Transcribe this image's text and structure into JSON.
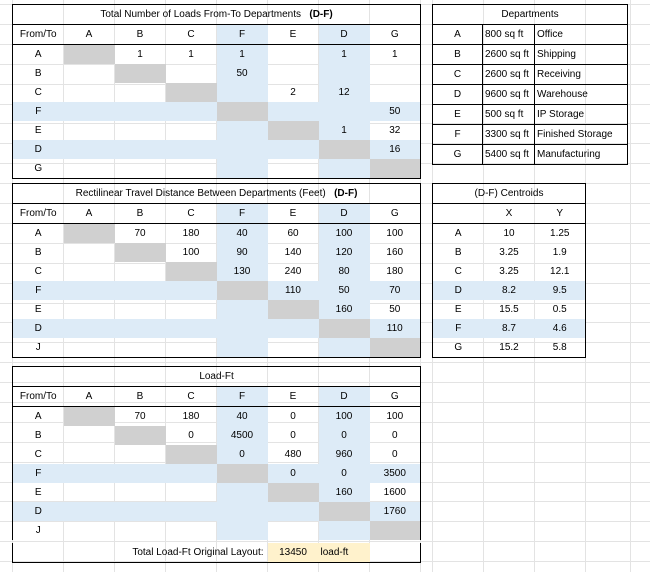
{
  "headers": [
    "From/To",
    "A",
    "B",
    "C",
    "F",
    "E",
    "D",
    "G"
  ],
  "loads": {
    "title": "Total Number of Loads From-To Departments",
    "tag": "(D-F)",
    "rows": [
      [
        "A",
        "",
        "1",
        "1",
        "1",
        "",
        "1",
        "1"
      ],
      [
        "B",
        "",
        "",
        "",
        "50",
        "",
        "",
        ""
      ],
      [
        "C",
        "",
        "",
        "",
        "",
        "2",
        "12",
        ""
      ],
      [
        "F",
        "",
        "",
        "",
        "",
        "",
        "",
        "50"
      ],
      [
        "E",
        "",
        "",
        "",
        "",
        "",
        "1",
        "32"
      ],
      [
        "D",
        "",
        "",
        "",
        "",
        "",
        "",
        "16"
      ],
      [
        "G",
        "",
        "",
        "",
        "",
        "",
        "",
        ""
      ]
    ]
  },
  "distance": {
    "title": "Rectilinear Travel Distance Between Departments (Feet)",
    "tag": "(D-F)",
    "rows": [
      [
        "A",
        "",
        "70",
        "180",
        "40",
        "60",
        "100",
        "100"
      ],
      [
        "B",
        "",
        "",
        "100",
        "90",
        "140",
        "120",
        "160"
      ],
      [
        "C",
        "",
        "",
        "",
        "130",
        "240",
        "80",
        "180"
      ],
      [
        "F",
        "",
        "",
        "",
        "",
        "110",
        "50",
        "70"
      ],
      [
        "E",
        "",
        "",
        "",
        "",
        "",
        "160",
        "50"
      ],
      [
        "D",
        "",
        "",
        "",
        "",
        "",
        "",
        "110"
      ],
      [
        "J",
        "",
        "",
        "",
        "",
        "",
        "",
        ""
      ]
    ]
  },
  "loadft": {
    "title": "Load-Ft",
    "rows": [
      [
        "A",
        "",
        "70",
        "180",
        "40",
        "0",
        "100",
        "100"
      ],
      [
        "B",
        "",
        "",
        "0",
        "4500",
        "0",
        "0",
        "0"
      ],
      [
        "C",
        "",
        "",
        "",
        "0",
        "480",
        "960",
        "0"
      ],
      [
        "F",
        "",
        "",
        "",
        "",
        "0",
        "0",
        "3500"
      ],
      [
        "E",
        "",
        "",
        "",
        "",
        "",
        "160",
        "1600"
      ],
      [
        "D",
        "",
        "",
        "",
        "",
        "",
        "",
        "1760"
      ],
      [
        "J",
        "",
        "",
        "",
        "",
        "",
        "",
        ""
      ]
    ],
    "total_label": "Total Load-Ft Original Layout:",
    "total_value": "13450",
    "total_unit": "load-ft"
  },
  "departments": {
    "title": "Departments",
    "rows": [
      [
        "A",
        "800 sq ft",
        "Office"
      ],
      [
        "B",
        "2600 sq ft",
        "Shipping"
      ],
      [
        "C",
        "2600 sq ft",
        "Receiving"
      ],
      [
        "D",
        "9600 sq ft",
        "Warehouse"
      ],
      [
        "E",
        "500 sq ft",
        "IP Storage"
      ],
      [
        "F",
        "3300 sq ft",
        "Finished Storage"
      ],
      [
        "G",
        "5400 sq ft",
        "Manufacturing"
      ]
    ]
  },
  "centroids": {
    "title": "(D-F) Centroids",
    "headers": [
      "",
      "X",
      "Y"
    ],
    "rows": [
      [
        "A",
        "10",
        "1.25"
      ],
      [
        "B",
        "3.25",
        "1.9"
      ],
      [
        "C",
        "3.25",
        "12.1"
      ],
      [
        "D",
        "8.2",
        "9.5"
      ],
      [
        "E",
        "15.5",
        "0.5"
      ],
      [
        "F",
        "8.7",
        "4.6"
      ],
      [
        "G",
        "15.2",
        "5.8"
      ]
    ]
  }
}
